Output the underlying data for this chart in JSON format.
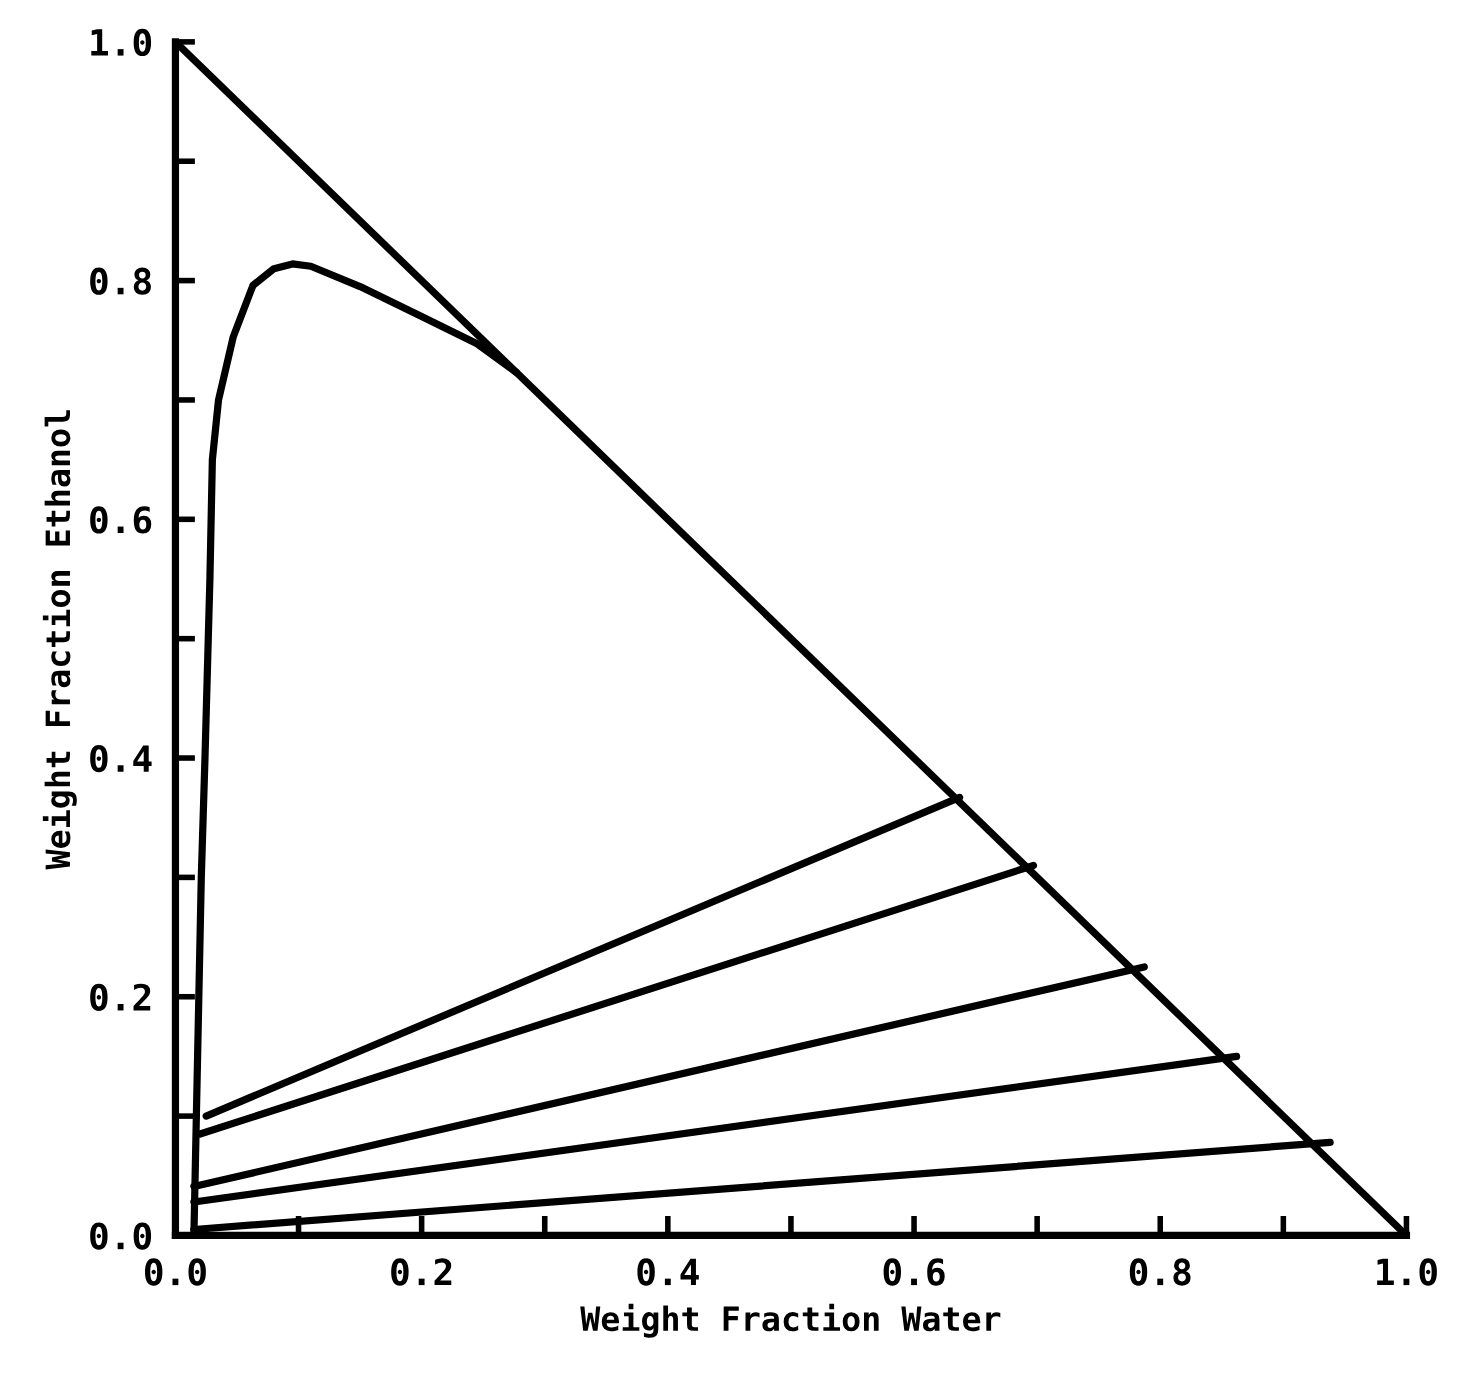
{
  "chart_data": {
    "type": "line",
    "xlabel": "Weight Fraction Water",
    "ylabel": "Weight Fraction Ethanol",
    "xlim": [
      0,
      1
    ],
    "ylim": [
      0,
      1
    ],
    "xticks": [
      {
        "value": 0,
        "label": "0.0"
      },
      {
        "value": 0.1,
        "label": null
      },
      0.2,
      {
        "value": 0.3,
        "label": null
      },
      0.4,
      {
        "value": 0.5,
        "label": null
      },
      0.6,
      {
        "value": 0.7,
        "label": null
      },
      0.8,
      {
        "value": 0.9,
        "label": null
      },
      {
        "value": 1,
        "label": "1.0"
      }
    ],
    "yticks": [
      {
        "value": 0,
        "label": "0.0"
      },
      {
        "value": 0.1,
        "label": null
      },
      0.2,
      {
        "value": 0.3,
        "label": null
      },
      0.4,
      {
        "value": 0.5,
        "label": null
      },
      0.6,
      {
        "value": 0.7,
        "label": null
      },
      0.8,
      {
        "value": 0.9,
        "label": null
      },
      {
        "value": 1,
        "label": "1.0"
      }
    ],
    "marker": "none",
    "line_style": "solid",
    "series": [
      {
        "color": "#000000",
        "x": [
          0,
          1
        ],
        "values": [
          1,
          0
        ]
      },
      {
        "color": "#000000",
        "x": [
          0.015,
          0.017,
          0.019,
          0.021,
          0.024,
          0.028,
          0.03,
          0.035,
          0.047,
          0.063,
          0.08,
          0.095,
          0.11,
          0.15,
          0.2,
          0.245,
          0.277
        ],
        "values": [
          0,
          0.1,
          0.2,
          0.3,
          0.4,
          0.55,
          0.65,
          0.7,
          0.753,
          0.796,
          0.81,
          0.814,
          0.812,
          0.795,
          0.77,
          0.747,
          0.723
        ]
      },
      {
        "color": "#000000",
        "x": [
          0.025,
          0.637
        ],
        "values": [
          0.1,
          0.367
        ]
      },
      {
        "color": "#000000",
        "x": [
          0.02,
          0.697
        ],
        "values": [
          0.085,
          0.31
        ]
      },
      {
        "color": "#000000",
        "x": [
          0.015,
          0.787
        ],
        "values": [
          0.041,
          0.225
        ]
      },
      {
        "color": "#000000",
        "x": [
          0.015,
          0.862
        ],
        "values": [
          0.028,
          0.15
        ]
      },
      {
        "color": "#000000",
        "x": [
          0.015,
          0.938
        ],
        "values": [
          0.005,
          0.078
        ]
      }
    ]
  }
}
